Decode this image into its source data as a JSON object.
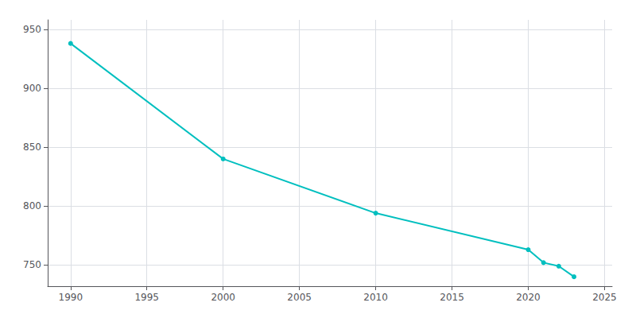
{
  "chart_data": {
    "type": "line",
    "x": [
      1990,
      2000,
      2010,
      2020,
      2021,
      2022,
      2023
    ],
    "values": [
      938,
      840,
      794,
      763,
      752,
      749,
      740
    ],
    "color": "#00BFBF",
    "marker": "circle",
    "xlim": [
      1988.5,
      2025.5
    ],
    "xticks": [
      1990,
      1995,
      2000,
      2005,
      2010,
      2015,
      2020,
      2025
    ],
    "ylim": [
      732,
      958
    ],
    "yticks": [
      750,
      800,
      850,
      900,
      950
    ],
    "grid": true
  }
}
